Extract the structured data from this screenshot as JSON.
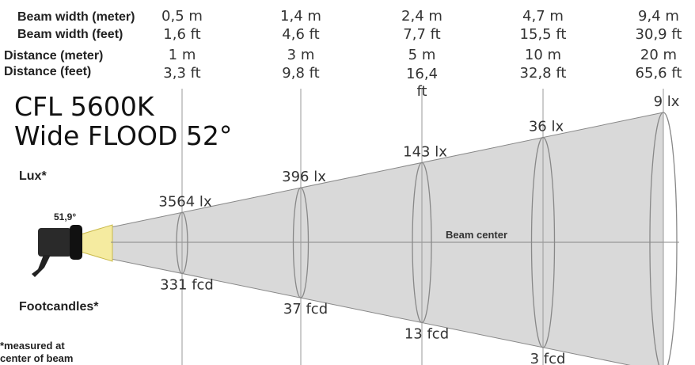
{
  "title": [
    "CFL 5600K",
    "Wide FLOOD 52°"
  ],
  "row_labels": {
    "beam_m": "Beam width (meter)",
    "beam_ft": "Beam width (feet)",
    "dist_m": "Distance (meter)",
    "dist_ft": "Distance (feet)"
  },
  "lux_label": "Lux*",
  "fcd_label": "Footcandles*",
  "angle": "51,9°",
  "beam_center": "Beam center",
  "note": [
    "*measured at",
    "center of beam"
  ],
  "columns": [
    {
      "beam_m": "0,5 m",
      "beam_ft": "1,6 ft",
      "dist_m": "1 m",
      "dist_ft": "3,3 ft",
      "lux": "3564 lx",
      "fcd": "331 fcd"
    },
    {
      "beam_m": "1,4 m",
      "beam_ft": "4,6 ft",
      "dist_m": "3 m",
      "dist_ft": "9,8 ft",
      "lux": "396 lx",
      "fcd": "37 fcd"
    },
    {
      "beam_m": "2,4 m",
      "beam_ft": "7,7 ft",
      "dist_m": "5 m",
      "dist_ft": "16,4 ft",
      "lux": "143 lx",
      "fcd": "13 fcd"
    },
    {
      "beam_m": "4,7 m",
      "beam_ft": "15,5 ft",
      "dist_m": "10 m",
      "dist_ft": "32,8 ft",
      "lux": "36 lx",
      "fcd": "3 fcd"
    },
    {
      "beam_m": "9,4 m",
      "beam_ft": "30,9 ft",
      "dist_m": "20 m",
      "dist_ft": "65,6 ft",
      "lux": "9 lx"
    }
  ]
}
